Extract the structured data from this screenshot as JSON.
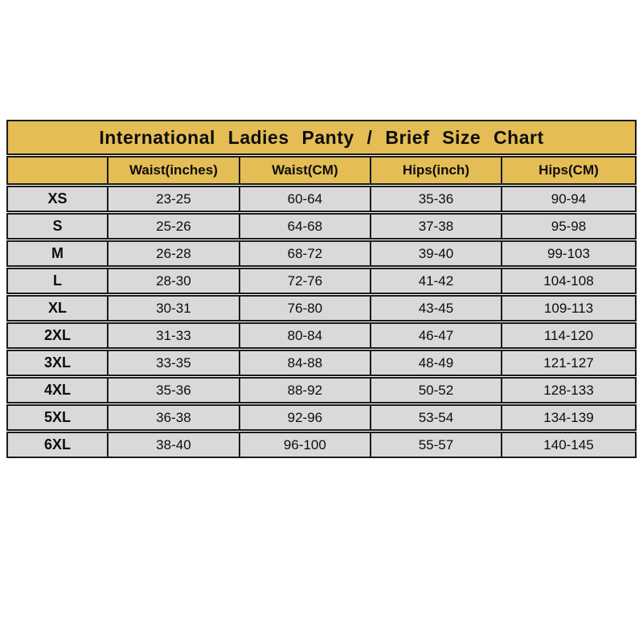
{
  "page": {
    "background": "#ffffff"
  },
  "chart_data": {
    "type": "table",
    "title": "International Ladies Panty / Brief Size Chart",
    "columns": [
      "",
      "Waist(inches)",
      "Waist(CM)",
      "Hips(inch)",
      "Hips(CM)"
    ],
    "rows": [
      [
        "XS",
        "23-25",
        "60-64",
        "35-36",
        "90-94"
      ],
      [
        "S",
        "25-26",
        "64-68",
        "37-38",
        "95-98"
      ],
      [
        "M",
        "26-28",
        "68-72",
        "39-40",
        "99-103"
      ],
      [
        "L",
        "28-30",
        "72-76",
        "41-42",
        "104-108"
      ],
      [
        "XL",
        "30-31",
        "76-80",
        "43-45",
        "109-113"
      ],
      [
        "2XL",
        "31-33",
        "80-84",
        "46-47",
        "114-120"
      ],
      [
        "3XL",
        "33-35",
        "84-88",
        "48-49",
        "121-127"
      ],
      [
        "4XL",
        "35-36",
        "88-92",
        "50-52",
        "128-133"
      ],
      [
        "5XL",
        "36-38",
        "92-96",
        "53-54",
        "134-139"
      ],
      [
        "6XL",
        "38-40",
        "96-100",
        "55-57",
        "140-145"
      ]
    ],
    "colors": {
      "header_bg": "#e4bd55",
      "row_bg": "#d9d9d9",
      "border": "#1b1b1b",
      "text": "#0d0d0d"
    },
    "layout": {
      "legend": "none",
      "grid": "full-borders"
    }
  }
}
